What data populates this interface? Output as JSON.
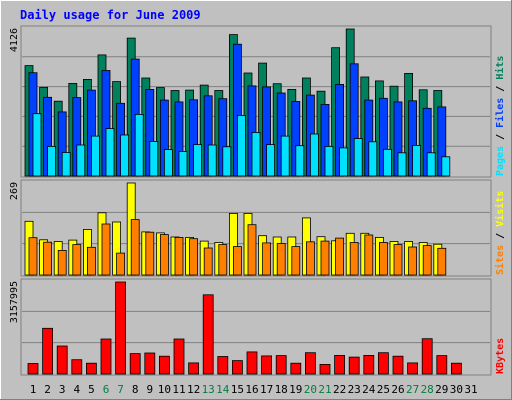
{
  "chart_data": {
    "type": "bar",
    "title": "Daily usage for June 2009",
    "categories": [
      "1",
      "2",
      "3",
      "4",
      "5",
      "6",
      "7",
      "8",
      "9",
      "10",
      "11",
      "12",
      "13",
      "14",
      "15",
      "16",
      "17",
      "18",
      "19",
      "20",
      "21",
      "22",
      "23",
      "24",
      "25",
      "26",
      "27",
      "28",
      "29",
      "30",
      "31"
    ],
    "weekend_days": [
      "6",
      "7",
      "13",
      "14",
      "20",
      "21",
      "27",
      "28"
    ],
    "panels": [
      {
        "id": "hits_files_pages",
        "max_label": "4126",
        "ylim": [
          0,
          4126
        ],
        "legend": [
          {
            "label": "Pages",
            "color": "#00E0FF"
          },
          {
            "label": "Files",
            "color": "#0040FF"
          },
          {
            "label": "Hits",
            "color": "#00805C"
          }
        ],
        "series": [
          {
            "name": "Hits",
            "color": "#00805C",
            "values": [
              3100,
              2490,
              2100,
              2600,
              2710,
              3400,
              2650,
              3870,
              2750,
              2480,
              2400,
              2410,
              2550,
              2400,
              3970,
              2890,
              3170,
              2590,
              2430,
              2750,
              2380,
              3600,
              4126,
              2780,
              2670,
              2520,
              2880,
              2420,
              2400,
              0,
              0
            ]
          },
          {
            "name": "Files",
            "color": "#0040FF",
            "values": [
              2900,
              2210,
              1800,
              2200,
              2410,
              2960,
              2040,
              3280,
              2430,
              2130,
              2080,
              2140,
              2250,
              2170,
              3700,
              2530,
              2500,
              2330,
              2090,
              2270,
              2010,
              2570,
              3150,
              2130,
              2180,
              2080,
              2110,
              1900,
              1940,
              0,
              0
            ]
          },
          {
            "name": "Pages",
            "color": "#00E0FF",
            "values": [
              1750,
              830,
              660,
              870,
              1120,
              1330,
              1150,
              1730,
              970,
              740,
              690,
              880,
              870,
              820,
              1700,
              1220,
              880,
              1120,
              850,
              1180,
              830,
              790,
              1050,
              960,
              750,
              650,
              860,
              650,
              540,
              0,
              0
            ]
          }
        ]
      },
      {
        "id": "visits_sites",
        "max_label": "269",
        "ylim": [
          0,
          269
        ],
        "legend": [
          {
            "label": "Sites",
            "color": "#FF8000"
          },
          {
            "label": "Visits",
            "color": "#FFFF00"
          }
        ],
        "series": [
          {
            "name": "Visits",
            "color": "#FFFF00",
            "values": [
              157,
              103,
              98,
              102,
              133,
              182,
              155,
              269,
              126,
              123,
              111,
              110,
              99,
              95,
              180,
              180,
              115,
              111,
              111,
              167,
              112,
              100,
              122,
              122,
              110,
              98,
              98,
              95,
              90,
              0,
              0
            ]
          },
          {
            "name": "Sites",
            "color": "#FF8000",
            "values": [
              109,
              96,
              72,
              89,
              81,
              149,
              64,
              162,
              125,
              118,
              110,
              106,
              79,
              89,
              83,
              147,
              94,
              92,
              83,
              97,
              99,
              108,
              95,
              117,
              95,
              89,
              82,
              86,
              78,
              0,
              0
            ]
          }
        ]
      },
      {
        "id": "kbytes",
        "max_label": "3157995",
        "ylim": [
          0,
          3157995
        ],
        "legend": [
          {
            "label": "KBytes",
            "color": "#FF0000"
          }
        ],
        "series": [
          {
            "name": "KBytes",
            "color": "#FF0000",
            "values": [
              360000,
              1570000,
              960000,
              490000,
              370000,
              1200000,
              3157995,
              700000,
              720000,
              610000,
              1200000,
              380000,
              2720000,
              600000,
              460000,
              760000,
              620000,
              630000,
              370000,
              730000,
              330000,
              640000,
              580000,
              640000,
              730000,
              610000,
              380000,
              1210000,
              630000,
              370000,
              0
            ]
          }
        ]
      }
    ]
  },
  "colors": {
    "background": "#C0C0C0",
    "title": "#0000FF",
    "axis_label": "#000000",
    "weekend_label": "#008040",
    "weekday_label": "#000000"
  }
}
